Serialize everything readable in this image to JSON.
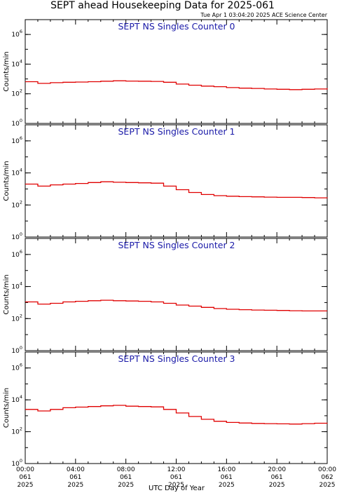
{
  "title": "SEPT ahead Housekeeping Data for 2025-061",
  "timestamp": "Tue Apr  1 03:04:20 2025 ACE Science Center",
  "xlabel": "UTC Day of Year",
  "colors": {
    "trace": "#e00000",
    "panel_title": "#1a1aa8",
    "axes": "#000000"
  },
  "x_ticks": [
    {
      "time": "00:00",
      "doy": "061",
      "year": "2025"
    },
    {
      "time": "04:00",
      "doy": "061",
      "year": "2025"
    },
    {
      "time": "08:00",
      "doy": "061",
      "year": "2025"
    },
    {
      "time": "12:00",
      "doy": "061",
      "year": "2025"
    },
    {
      "time": "16:00",
      "doy": "061",
      "year": "2025"
    },
    {
      "time": "20:00",
      "doy": "061",
      "year": "2025"
    },
    {
      "time": "00:00",
      "doy": "062",
      "year": "2025"
    }
  ],
  "chart_data": [
    {
      "type": "line",
      "title": "SEPT NS Singles Counter 0",
      "ylabel": "Counts/min",
      "y_scale": "log",
      "ylim": [
        1,
        10000000.0
      ],
      "yticks": [
        {
          "base": "10",
          "exp": "0"
        },
        {
          "base": "10",
          "exp": "2"
        },
        {
          "base": "10",
          "exp": "4"
        },
        {
          "base": "10",
          "exp": "6"
        }
      ],
      "xlim_hours": [
        0,
        24
      ],
      "step": true,
      "x_hours": [
        0,
        1,
        2,
        3,
        4,
        5,
        6,
        7,
        8,
        9,
        10,
        11,
        12,
        13,
        14,
        15,
        16,
        17,
        18,
        19,
        20,
        21,
        22,
        23,
        24
      ],
      "values": [
        650,
        500,
        560,
        600,
        620,
        650,
        700,
        750,
        720,
        700,
        680,
        600,
        450,
        380,
        330,
        300,
        260,
        240,
        230,
        210,
        200,
        190,
        200,
        210,
        240
      ]
    },
    {
      "type": "line",
      "title": "SEPT NS Singles Counter 1",
      "ylabel": "Counts/min",
      "y_scale": "log",
      "ylim": [
        1,
        10000000.0
      ],
      "yticks": [
        {
          "base": "10",
          "exp": "0"
        },
        {
          "base": "10",
          "exp": "2"
        },
        {
          "base": "10",
          "exp": "4"
        },
        {
          "base": "10",
          "exp": "6"
        }
      ],
      "xlim_hours": [
        0,
        24
      ],
      "step": true,
      "x_hours": [
        0,
        1,
        2,
        3,
        4,
        5,
        6,
        7,
        8,
        9,
        10,
        11,
        12,
        13,
        14,
        15,
        16,
        17,
        18,
        19,
        20,
        21,
        22,
        23,
        24
      ],
      "values": [
        2000,
        1500,
        1800,
        2000,
        2200,
        2500,
        2800,
        2600,
        2500,
        2400,
        2300,
        1500,
        900,
        600,
        450,
        380,
        350,
        330,
        320,
        310,
        300,
        300,
        290,
        280,
        260
      ]
    },
    {
      "type": "line",
      "title": "SEPT NS Singles Counter 2",
      "ylabel": "Counts/min",
      "y_scale": "log",
      "ylim": [
        1,
        10000000.0
      ],
      "yticks": [
        {
          "base": "10",
          "exp": "0"
        },
        {
          "base": "10",
          "exp": "2"
        },
        {
          "base": "10",
          "exp": "4"
        },
        {
          "base": "10",
          "exp": "6"
        }
      ],
      "xlim_hours": [
        0,
        24
      ],
      "step": true,
      "x_hours": [
        0,
        1,
        2,
        3,
        4,
        5,
        6,
        7,
        8,
        9,
        10,
        11,
        12,
        13,
        14,
        15,
        16,
        17,
        18,
        19,
        20,
        21,
        22,
        23,
        24
      ],
      "values": [
        1100,
        800,
        900,
        1100,
        1200,
        1300,
        1400,
        1300,
        1250,
        1200,
        1100,
        900,
        700,
        600,
        500,
        420,
        380,
        360,
        340,
        330,
        320,
        310,
        300,
        300,
        300
      ]
    },
    {
      "type": "line",
      "title": "SEPT NS Singles Counter 3",
      "ylabel": "Counts/min",
      "y_scale": "log",
      "ylim": [
        1,
        10000000.0
      ],
      "yticks": [
        {
          "base": "10",
          "exp": "0"
        },
        {
          "base": "10",
          "exp": "2"
        },
        {
          "base": "10",
          "exp": "4"
        },
        {
          "base": "10",
          "exp": "6"
        }
      ],
      "xlim_hours": [
        0,
        24
      ],
      "step": true,
      "x_hours": [
        0,
        1,
        2,
        3,
        4,
        5,
        6,
        7,
        8,
        9,
        10,
        11,
        12,
        13,
        14,
        15,
        16,
        17,
        18,
        19,
        20,
        21,
        22,
        23,
        24
      ],
      "values": [
        2500,
        2000,
        2500,
        3200,
        3500,
        3800,
        4200,
        4500,
        4000,
        3800,
        3600,
        2500,
        1500,
        900,
        600,
        450,
        380,
        350,
        330,
        320,
        310,
        300,
        320,
        340,
        360
      ]
    }
  ]
}
